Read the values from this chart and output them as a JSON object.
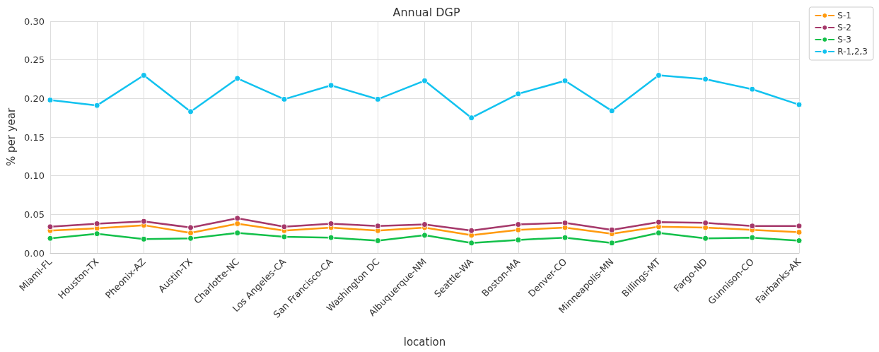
{
  "chart_data": {
    "type": "line",
    "title": "Annual DGP",
    "xlabel": "location",
    "ylabel": "% per year",
    "categories": [
      "Miami-FL",
      "Houston-TX",
      "Pheonix-AZ",
      "Austin-TX",
      "Charlotte-NC",
      "Los Angeles-CA",
      "San Francisco-CA",
      "Washington DC",
      "Albuquerque-NM",
      "Seattle-WA",
      "Boston-MA",
      "Denver-CO",
      "Minneapolis-MN",
      "Billings-MT",
      "Fargo-ND",
      "Gunnison-CO",
      "Fairbanks-AK"
    ],
    "series": [
      {
        "name": "S-1",
        "color": "#ff9a0e",
        "values": [
          0.029,
          0.032,
          0.036,
          0.026,
          0.038,
          0.029,
          0.033,
          0.029,
          0.033,
          0.023,
          0.03,
          0.033,
          0.025,
          0.034,
          0.033,
          0.03,
          0.027
        ]
      },
      {
        "name": "S-2",
        "color": "#a5386a",
        "values": [
          0.034,
          0.038,
          0.041,
          0.033,
          0.045,
          0.034,
          0.038,
          0.035,
          0.037,
          0.029,
          0.037,
          0.039,
          0.03,
          0.04,
          0.039,
          0.035,
          0.035
        ]
      },
      {
        "name": "S-3",
        "color": "#13c04a",
        "values": [
          0.019,
          0.025,
          0.018,
          0.019,
          0.026,
          0.021,
          0.02,
          0.016,
          0.023,
          0.013,
          0.017,
          0.02,
          0.013,
          0.026,
          0.019,
          0.02,
          0.016
        ]
      },
      {
        "name": "R-1,2,3",
        "color": "#12c2ef",
        "values": [
          0.198,
          0.191,
          0.23,
          0.183,
          0.226,
          0.199,
          0.217,
          0.199,
          0.223,
          0.175,
          0.206,
          0.223,
          0.184,
          0.23,
          0.225,
          0.212,
          0.192
        ]
      }
    ],
    "ylim": [
      0,
      0.3
    ],
    "yticks": [
      {
        "value": 0,
        "label": "0.00"
      },
      {
        "value": 0.05,
        "label": "0.05"
      },
      {
        "value": 0.1,
        "label": "0.10"
      },
      {
        "value": 0.15,
        "label": "0.15"
      },
      {
        "value": 0.2,
        "label": "0.20"
      },
      {
        "value": 0.25,
        "label": "0.25"
      },
      {
        "value": 0.3,
        "label": "0.30"
      }
    ],
    "grid": true,
    "legend": "top right",
    "marker": "circle",
    "line_style": "solid"
  }
}
